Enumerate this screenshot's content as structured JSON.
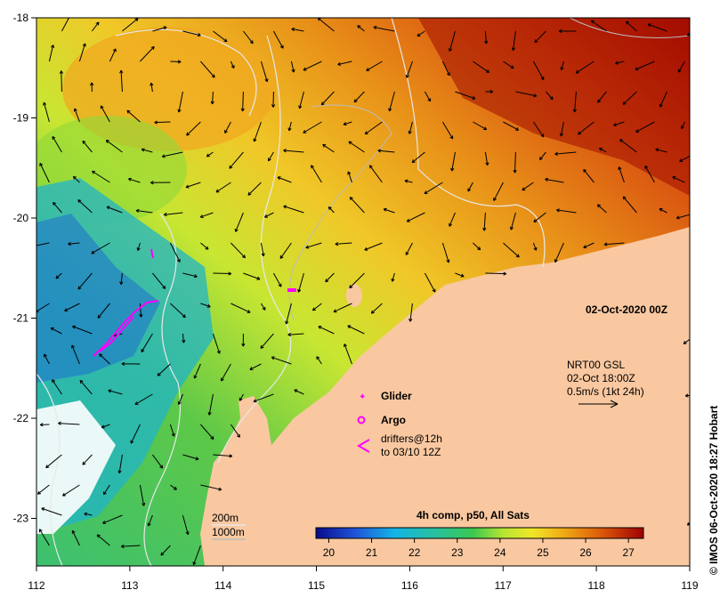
{
  "map": {
    "date_label": "02-Oct-2020 00Z",
    "composite_label": "4h comp, p50, All Sats",
    "credit": "© IMOS 06-Oct-2020 18:27 Hobart",
    "x_axis": {
      "ticks": [
        "112",
        "113",
        "114",
        "115",
        "116",
        "117",
        "118",
        "119"
      ]
    },
    "y_axis": {
      "ticks": [
        "-18",
        "-19",
        "-20",
        "-21",
        "-22",
        "-23"
      ]
    },
    "current_info": {
      "line1": "NRT00 GSL",
      "line2": "02-Oct 18:00Z",
      "line3": "0.5m/s (1kt 24h)"
    },
    "legend": {
      "glider": "Glider",
      "argo": "Argo",
      "drifters_line1": "drifters@12h",
      "drifters_line2": "to 03/10 12Z"
    },
    "bathymetry": {
      "contour1": "200m",
      "contour2": "1000m"
    },
    "colorbar": {
      "ticks": [
        "20",
        "21",
        "22",
        "23",
        "24",
        "25",
        "26",
        "27"
      ],
      "min": 19.7,
      "max": 27.35
    },
    "colors": {
      "land": "#f9c8a0",
      "arrow": "#000000",
      "glider": "#ff00ff",
      "argo": "#ff00ff",
      "drifter": "#ff00ff"
    }
  }
}
